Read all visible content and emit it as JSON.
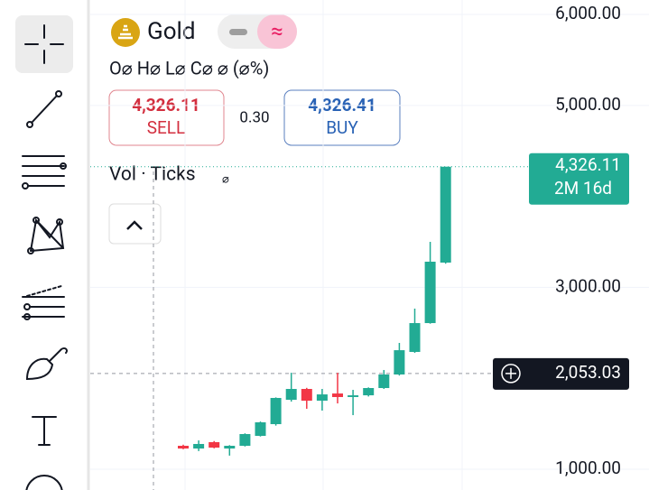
{
  "header": {
    "symbol": "Gold",
    "ohlc": "O⌀ H⌀ L⌀ C⌀ ⌀ (⌀%)",
    "sell_price": "4,326.11",
    "sell_label": "SELL",
    "spread": "0.30",
    "buy_price": "4,326.41",
    "buy_label": "BUY",
    "volume_label": "Vol · Ticks",
    "volume_value": "⌀"
  },
  "chart_data": {
    "type": "candlestick",
    "categories": [
      null,
      null,
      null,
      null,
      null,
      null,
      null,
      null,
      null,
      null,
      null,
      null,
      null,
      null,
      null,
      null,
      null,
      null
    ],
    "open": [
      1258,
      1228,
      1298,
      1228,
      1258,
      1367,
      1496,
      1764,
      1883,
      1754,
      1833,
      1794,
      1813,
      1893,
      2042,
      2290,
      2607,
      3272
    ],
    "high": [
      1270,
      1317,
      1310,
      1265,
      1395,
      1525,
      1790,
      2061,
      1895,
      1883,
      2061,
      1873,
      1900,
      2091,
      2389,
      2766,
      3500,
      4326.11
    ],
    "low": [
      1220,
      1200,
      1230,
      1150,
      1250,
      1360,
      1480,
      1744,
      1665,
      1645,
      1724,
      1595,
      1800,
      1883,
      2030,
      2280,
      2600,
      3260
    ],
    "close": [
      1228,
      1278,
      1238,
      1258,
      1387,
      1516,
      1784,
      1883,
      1754,
      1823,
      1794,
      1813,
      1893,
      2042,
      2309,
      2607,
      3282,
      4326.11
    ],
    "up_color": "#22ab94",
    "down_color": "#f23645",
    "ylim": [
      772,
      6159
    ],
    "yticks": [
      {
        "value": 1000,
        "label": "1,000.00"
      },
      {
        "value": 3000,
        "label": "3,000.00"
      },
      {
        "value": 5000,
        "label": "5,000.00"
      },
      {
        "value": 6000,
        "label": "6,000.00"
      }
    ],
    "grid": true,
    "last_price": {
      "value": 4326.11,
      "label": "4,326.11"
    },
    "countdown": "2M 16d",
    "crosshair": {
      "value": 2053.03,
      "label": "2,053.03"
    }
  }
}
